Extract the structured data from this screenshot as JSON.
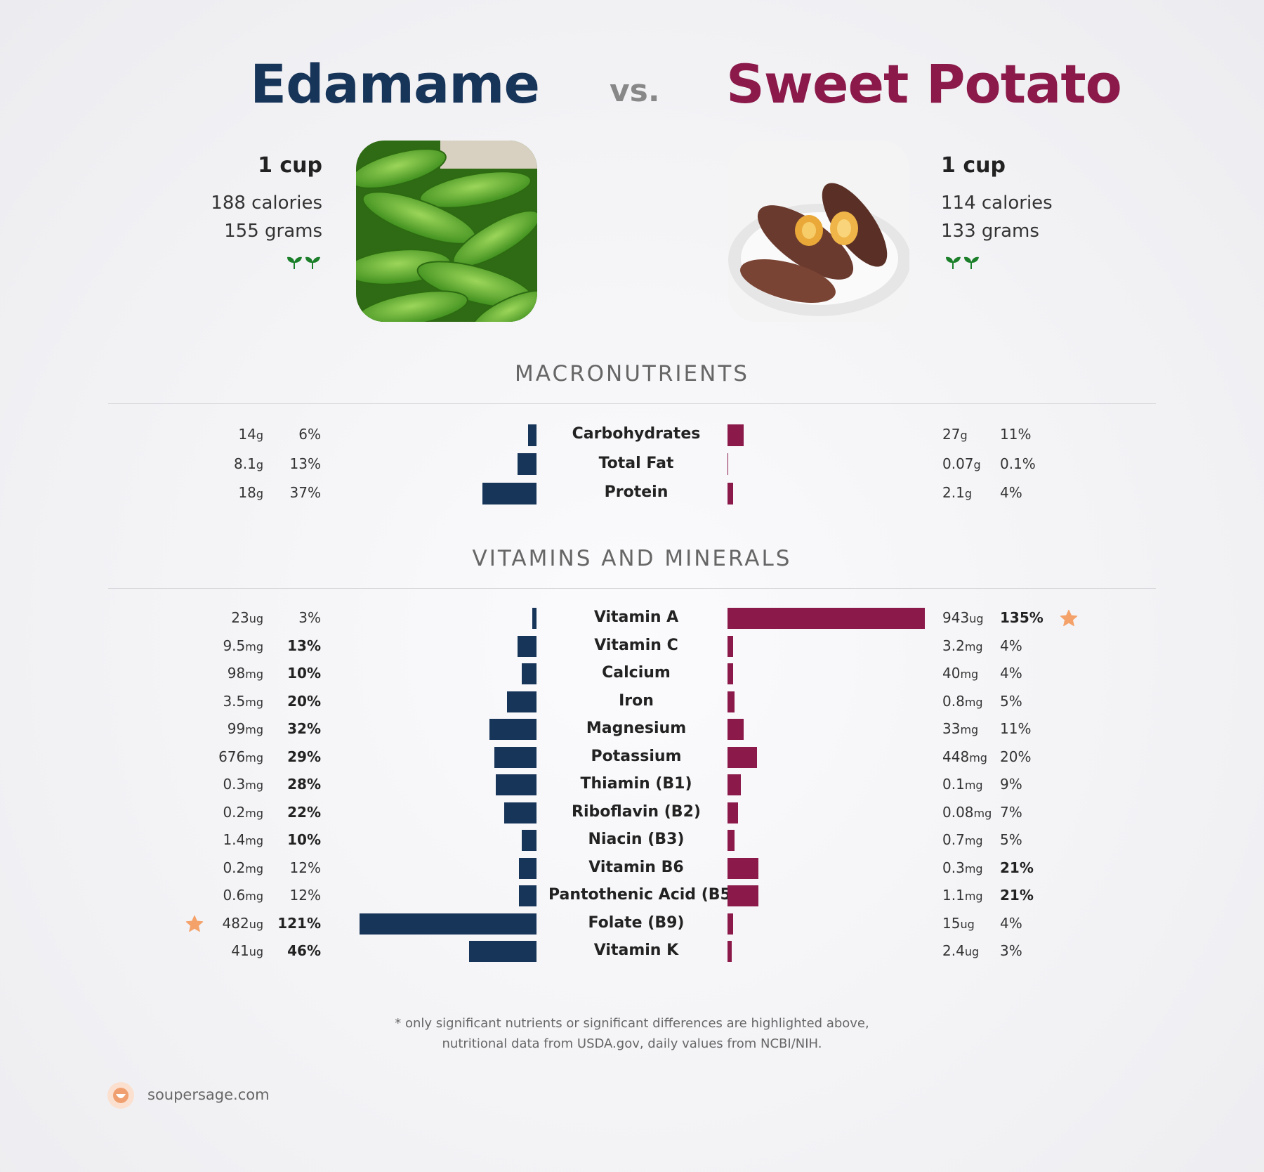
{
  "header": {
    "left_name": "Edamame",
    "vs": "vs.",
    "right_name": "Sweet Potato"
  },
  "foods": {
    "left": {
      "serving": "1 cup",
      "calories": "188 calories",
      "grams": "155 grams",
      "color": "#173459"
    },
    "right": {
      "serving": "1 cup",
      "calories": "114 calories",
      "grams": "133 grams",
      "color": "#8b1a4a"
    }
  },
  "sections": {
    "macros": "MACRONUTRIENTS",
    "vitamins": "VITAMINS AND MINERALS"
  },
  "chart_data": [
    {
      "type": "bar",
      "title": "MACRONUTRIENTS",
      "categories": [
        "Carbohydrates",
        "Total Fat",
        "Protein"
      ],
      "series": [
        {
          "name": "Edamame",
          "amounts": [
            "14",
            "8.1",
            "18"
          ],
          "units": [
            "g",
            "g",
            "g"
          ],
          "percents": [
            "6%",
            "13%",
            "37%"
          ],
          "bold": [
            false,
            false,
            false
          ],
          "values": [
            6,
            13,
            37
          ]
        },
        {
          "name": "Sweet Potato",
          "amounts": [
            "27",
            "0.07",
            "2.1"
          ],
          "units": [
            "g",
            "g",
            "g"
          ],
          "percents": [
            "11%",
            "0.1%",
            "4%"
          ],
          "bold": [
            false,
            false,
            false
          ],
          "values": [
            11,
            0.1,
            4
          ]
        }
      ]
    },
    {
      "type": "bar",
      "title": "VITAMINS AND MINERALS",
      "categories": [
        "Vitamin A",
        "Vitamin C",
        "Calcium",
        "Iron",
        "Magnesium",
        "Potassium",
        "Thiamin (B1)",
        "Riboflavin (B2)",
        "Niacin (B3)",
        "Vitamin B6",
        "Pantothenic Acid (B5)",
        "Folate (B9)",
        "Vitamin K"
      ],
      "series": [
        {
          "name": "Edamame",
          "amounts": [
            "23",
            "9.5",
            "98",
            "3.5",
            "99",
            "676",
            "0.3",
            "0.2",
            "1.4",
            "0.2",
            "0.6",
            "482",
            "41"
          ],
          "units": [
            "ug",
            "mg",
            "mg",
            "mg",
            "mg",
            "mg",
            "mg",
            "mg",
            "mg",
            "mg",
            "mg",
            "ug",
            "ug"
          ],
          "percents": [
            "3%",
            "13%",
            "10%",
            "20%",
            "32%",
            "29%",
            "28%",
            "22%",
            "10%",
            "12%",
            "12%",
            "121%",
            "46%"
          ],
          "bold": [
            false,
            true,
            true,
            true,
            true,
            true,
            true,
            true,
            true,
            false,
            false,
            true,
            true
          ],
          "values": [
            3,
            13,
            10,
            20,
            32,
            29,
            28,
            22,
            10,
            12,
            12,
            121,
            46
          ]
        },
        {
          "name": "Sweet Potato",
          "amounts": [
            "943",
            "3.2",
            "40",
            "0.8",
            "33",
            "448",
            "0.1",
            "0.08",
            "0.7",
            "0.3",
            "1.1",
            "15",
            "2.4"
          ],
          "units": [
            "ug",
            "mg",
            "mg",
            "mg",
            "mg",
            "mg",
            "mg",
            "mg",
            "mg",
            "mg",
            "mg",
            "ug",
            "ug"
          ],
          "percents": [
            "135%",
            "4%",
            "4%",
            "5%",
            "11%",
            "20%",
            "9%",
            "7%",
            "5%",
            "21%",
            "21%",
            "4%",
            "3%"
          ],
          "bold": [
            true,
            false,
            false,
            false,
            false,
            false,
            false,
            false,
            false,
            true,
            true,
            false,
            false
          ],
          "values": [
            135,
            4,
            4,
            5,
            11,
            20,
            9,
            7,
            5,
            21,
            21,
            4,
            3
          ]
        }
      ],
      "stars": {
        "left_row": 11,
        "right_row": 0
      }
    }
  ],
  "footnote": {
    "line1": "* only significant nutrients or significant differences are highlighted above,",
    "line2": "nutritional data from USDA.gov, daily values from NCBI/NIH."
  },
  "brand": {
    "site": "soupersage.com"
  }
}
